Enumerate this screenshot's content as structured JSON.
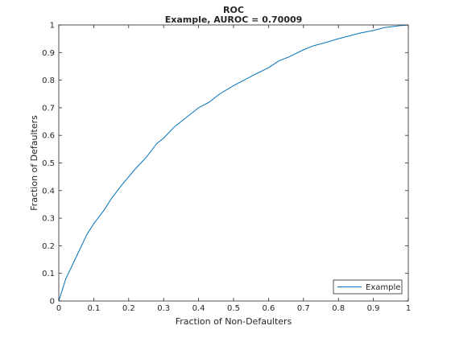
{
  "chart_data": {
    "type": "line",
    "title": "ROC",
    "subtitle": "Example, AUROC = 0.70009",
    "xlabel": "Fraction of Non-Defaulters",
    "ylabel": "Fraction of Defaulters",
    "xlim": [
      0,
      1
    ],
    "ylim": [
      0,
      1
    ],
    "xticks": [
      "0",
      "0.1",
      "0.2",
      "0.3",
      "0.4",
      "0.5",
      "0.6",
      "0.7",
      "0.8",
      "0.9",
      "1"
    ],
    "yticks": [
      "0",
      "0.1",
      "0.2",
      "0.3",
      "0.4",
      "0.5",
      "0.6",
      "0.7",
      "0.8",
      "0.9",
      "1"
    ],
    "grid": false,
    "legend_position": "bottom-right",
    "series": [
      {
        "name": "Example",
        "color": "#0072bd",
        "x": [
          0,
          0.02,
          0.05,
          0.08,
          0.1,
          0.13,
          0.15,
          0.18,
          0.2,
          0.22,
          0.25,
          0.28,
          0.3,
          0.33,
          0.36,
          0.38,
          0.4,
          0.43,
          0.46,
          0.5,
          0.53,
          0.56,
          0.6,
          0.63,
          0.66,
          0.7,
          0.73,
          0.76,
          0.8,
          0.83,
          0.86,
          0.9,
          0.93,
          0.96,
          0.98,
          1
        ],
        "y": [
          0,
          0.08,
          0.16,
          0.24,
          0.28,
          0.33,
          0.37,
          0.42,
          0.45,
          0.48,
          0.52,
          0.57,
          0.59,
          0.63,
          0.66,
          0.68,
          0.7,
          0.72,
          0.75,
          0.78,
          0.8,
          0.82,
          0.845,
          0.87,
          0.885,
          0.91,
          0.925,
          0.935,
          0.95,
          0.96,
          0.97,
          0.98,
          0.99,
          0.995,
          0.998,
          1
        ]
      }
    ]
  }
}
